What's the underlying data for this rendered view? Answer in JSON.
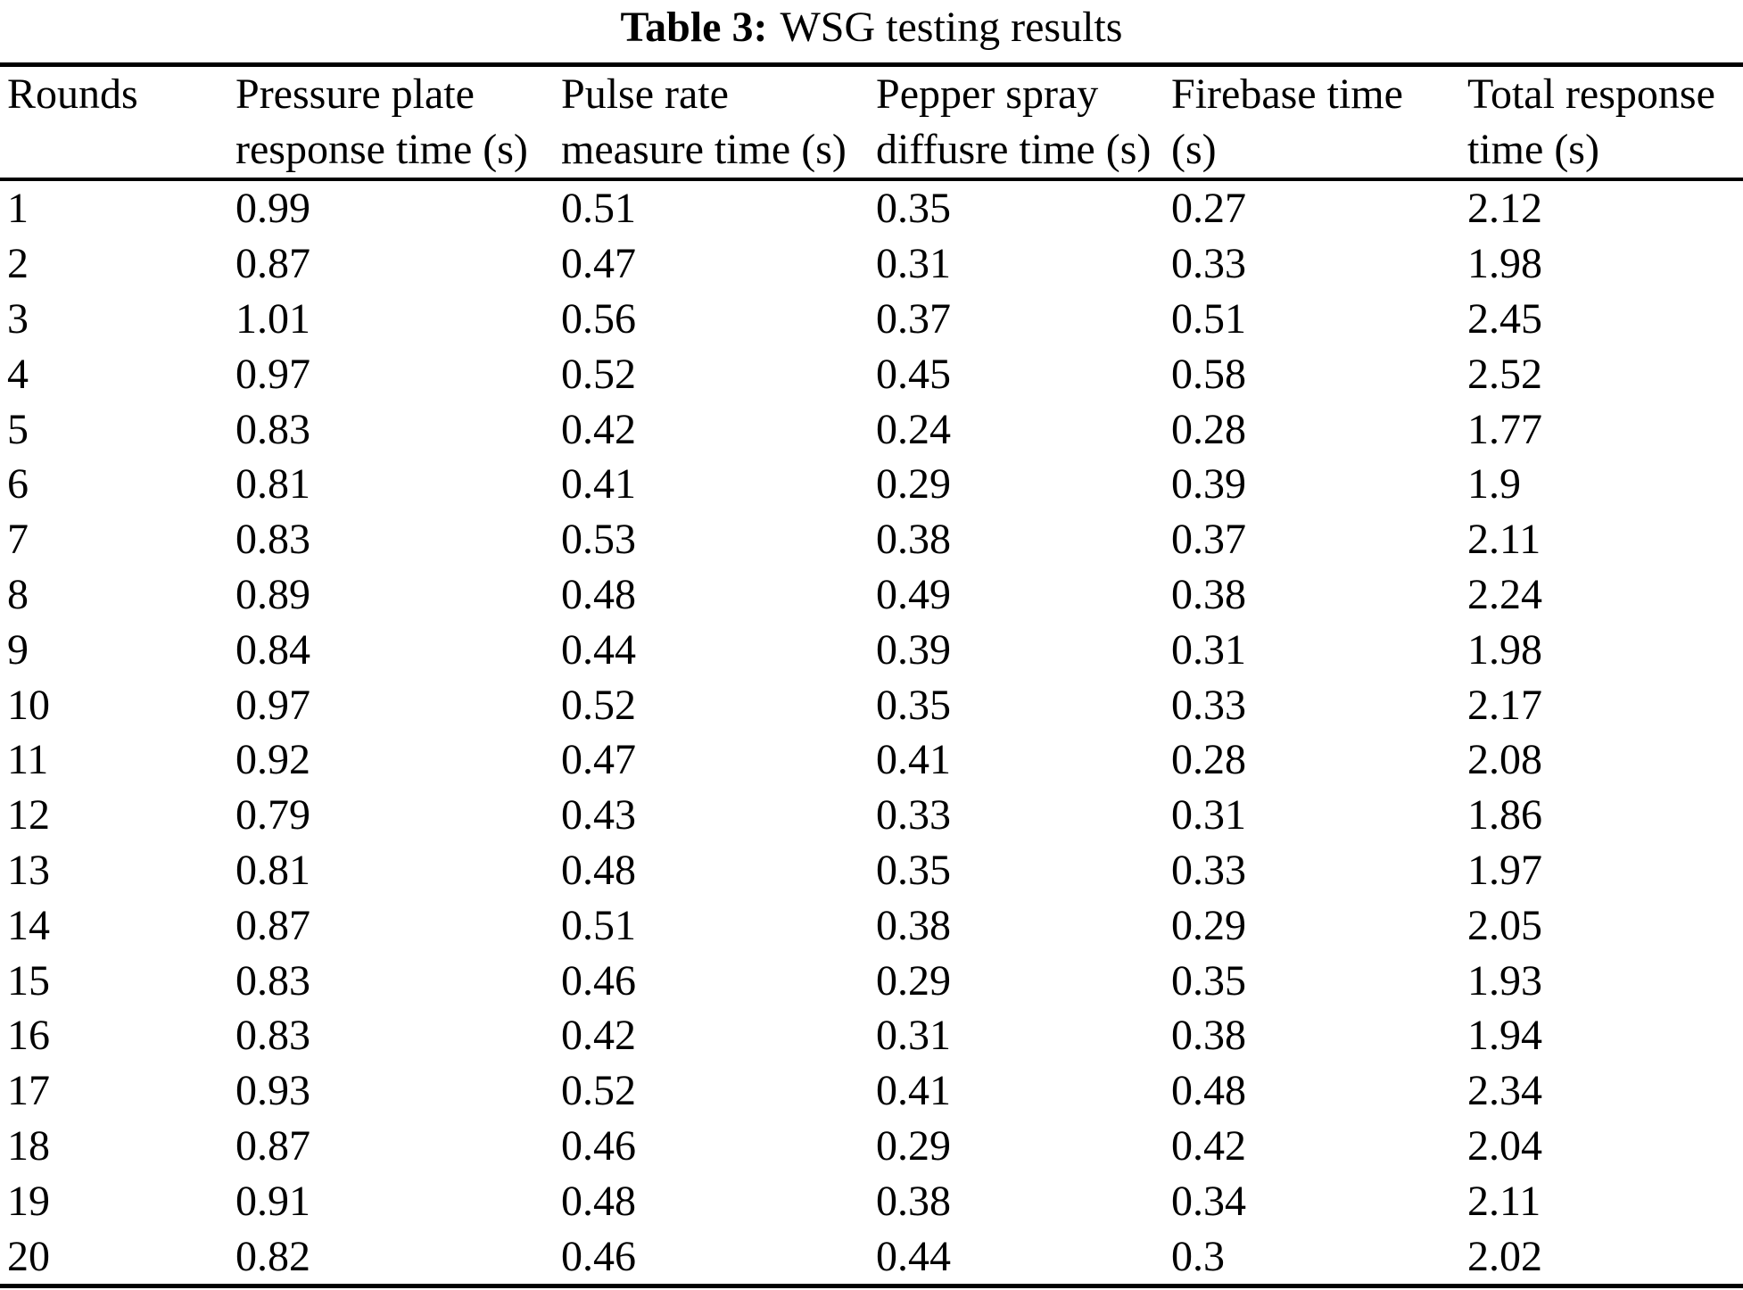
{
  "caption": {
    "label": "Table 3:",
    "text": "WSG testing results"
  },
  "chart_data": {
    "type": "table",
    "title": "Table 3: WSG testing results",
    "columns": [
      [
        "Rounds"
      ],
      [
        "Pressure plate",
        "response time (s)"
      ],
      [
        "Pulse rate",
        "measure time (s)"
      ],
      [
        "Pepper spray",
        "diffusre time (s)"
      ],
      [
        "Firebase time",
        "(s)"
      ],
      [
        "Total response",
        "time (s)"
      ]
    ],
    "rows": [
      [
        "1",
        "0.99",
        "0.51",
        "0.35",
        "0.27",
        "2.12"
      ],
      [
        "2",
        "0.87",
        "0.47",
        "0.31",
        "0.33",
        "1.98"
      ],
      [
        "3",
        "1.01",
        "0.56",
        "0.37",
        "0.51",
        "2.45"
      ],
      [
        "4",
        "0.97",
        "0.52",
        "0.45",
        "0.58",
        "2.52"
      ],
      [
        "5",
        "0.83",
        "0.42",
        "0.24",
        "0.28",
        "1.77"
      ],
      [
        "6",
        "0.81",
        "0.41",
        "0.29",
        "0.39",
        "1.9"
      ],
      [
        "7",
        "0.83",
        "0.53",
        "0.38",
        "0.37",
        "2.11"
      ],
      [
        "8",
        "0.89",
        "0.48",
        "0.49",
        "0.38",
        "2.24"
      ],
      [
        "9",
        "0.84",
        "0.44",
        "0.39",
        "0.31",
        "1.98"
      ],
      [
        "10",
        "0.97",
        "0.52",
        "0.35",
        "0.33",
        "2.17"
      ],
      [
        "11",
        "0.92",
        "0.47",
        "0.41",
        "0.28",
        "2.08"
      ],
      [
        "12",
        "0.79",
        "0.43",
        "0.33",
        "0.31",
        "1.86"
      ],
      [
        "13",
        "0.81",
        "0.48",
        "0.35",
        "0.33",
        "1.97"
      ],
      [
        "14",
        "0.87",
        "0.51",
        "0.38",
        "0.29",
        "2.05"
      ],
      [
        "15",
        "0.83",
        "0.46",
        "0.29",
        "0.35",
        "1.93"
      ],
      [
        "16",
        "0.83",
        "0.42",
        "0.31",
        "0.38",
        "1.94"
      ],
      [
        "17",
        "0.93",
        "0.52",
        "0.41",
        "0.48",
        "2.34"
      ],
      [
        "18",
        "0.87",
        "0.46",
        "0.29",
        "0.42",
        "2.04"
      ],
      [
        "19",
        "0.91",
        "0.48",
        "0.38",
        "0.34",
        "2.11"
      ],
      [
        "20",
        "0.82",
        "0.46",
        "0.44",
        "0.3",
        "2.02"
      ]
    ]
  }
}
